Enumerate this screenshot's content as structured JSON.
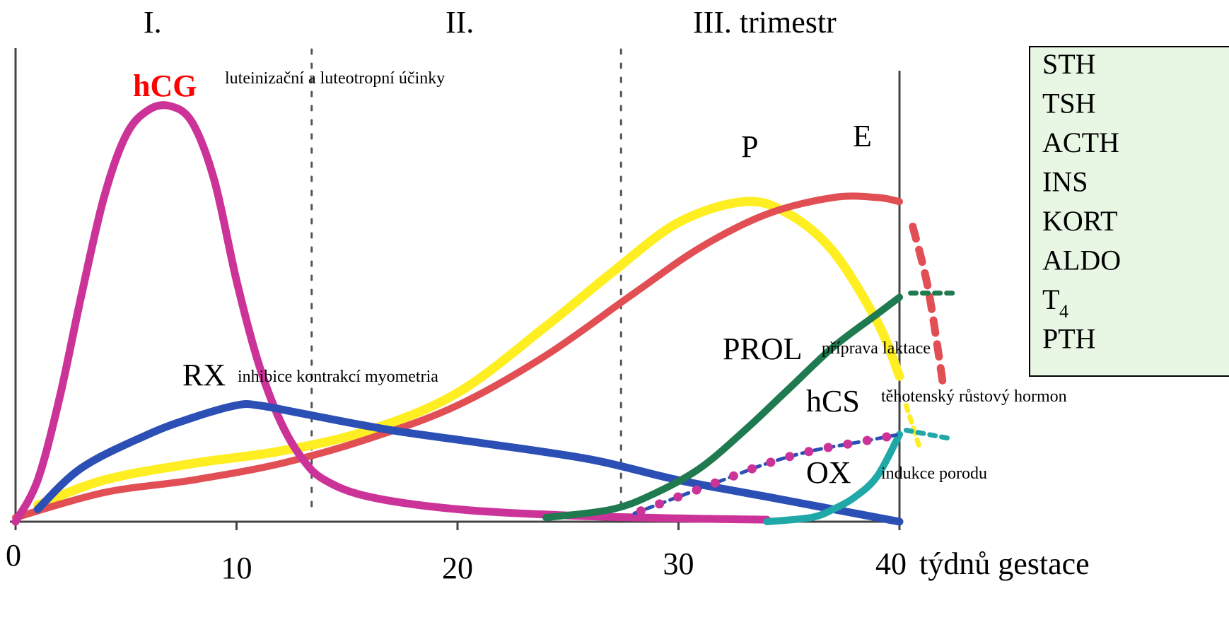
{
  "chart_data": {
    "type": "line",
    "title": "",
    "xlabel": "týdnů gestace",
    "ylabel": "",
    "xlim": [
      0,
      40
    ],
    "ylim": [
      0,
      100
    ],
    "x_ticks": [
      {
        "value": 0,
        "label": "0"
      },
      {
        "value": 10,
        "label": "10"
      },
      {
        "value": 20,
        "label": "20"
      },
      {
        "value": 30,
        "label": "30"
      },
      {
        "value": 40,
        "label": "40"
      }
    ],
    "trimesters": [
      {
        "label": "I.",
        "x": 6.2
      },
      {
        "label": "II.",
        "x": 20.1
      },
      {
        "label": "III. trimestr",
        "x": 33.9
      }
    ],
    "trimester_boundaries": [
      13.4,
      27.4
    ],
    "series": [
      {
        "name": "hCG",
        "note": "luteinizační a luteotropní účinky",
        "color": "#cc3399",
        "points": [
          [
            0,
            0
          ],
          [
            1,
            10
          ],
          [
            2,
            30
          ],
          [
            3,
            55
          ],
          [
            4,
            78
          ],
          [
            5,
            93
          ],
          [
            6,
            99
          ],
          [
            7,
            100
          ],
          [
            8,
            96
          ],
          [
            9,
            82
          ],
          [
            10,
            58
          ],
          [
            11,
            38
          ],
          [
            12,
            24
          ],
          [
            13,
            15
          ],
          [
            14,
            10
          ],
          [
            16,
            6
          ],
          [
            20,
            3
          ],
          [
            25,
            1.5
          ],
          [
            30,
            0.8
          ],
          [
            34,
            0.5
          ]
        ]
      },
      {
        "name": "RX",
        "note": "inhibice kontrakcí myometria",
        "color": "#2b4fb5",
        "points": [
          [
            1,
            3
          ],
          [
            3,
            13
          ],
          [
            6,
            21
          ],
          [
            8,
            25
          ],
          [
            10,
            28
          ],
          [
            11,
            28
          ],
          [
            13,
            26
          ],
          [
            17,
            22
          ],
          [
            21,
            19
          ],
          [
            26,
            15
          ],
          [
            30,
            10
          ],
          [
            34,
            6
          ],
          [
            37,
            3
          ],
          [
            40,
            0
          ]
        ]
      },
      {
        "name": "P",
        "note": "",
        "color": "#ffee22",
        "points": [
          [
            1,
            4
          ],
          [
            4,
            10
          ],
          [
            8,
            14
          ],
          [
            12,
            17
          ],
          [
            16,
            22
          ],
          [
            20,
            31
          ],
          [
            24,
            47
          ],
          [
            27,
            60
          ],
          [
            30,
            72
          ],
          [
            33,
            77
          ],
          [
            35,
            74
          ],
          [
            37,
            65
          ],
          [
            39,
            48
          ],
          [
            40,
            35
          ]
        ]
      },
      {
        "name": "E",
        "note": "",
        "color": "#e14f55",
        "points": [
          [
            0,
            1
          ],
          [
            4,
            7
          ],
          [
            8,
            10
          ],
          [
            12,
            14
          ],
          [
            16,
            20
          ],
          [
            20,
            28
          ],
          [
            24,
            40
          ],
          [
            28,
            55
          ],
          [
            31,
            66
          ],
          [
            34,
            74
          ],
          [
            37,
            78
          ],
          [
            39,
            78
          ],
          [
            40,
            77
          ]
        ]
      },
      {
        "name": "PROL",
        "note": "příprava laktace",
        "color": "#1f7a4f",
        "points": [
          [
            24,
            1
          ],
          [
            27,
            3
          ],
          [
            29,
            7
          ],
          [
            31,
            13
          ],
          [
            33,
            22
          ],
          [
            35,
            32
          ],
          [
            37,
            42
          ],
          [
            39,
            50
          ],
          [
            40,
            54
          ]
        ]
      },
      {
        "name": "hCS",
        "note": "těhotenský růstový hormon",
        "color": "#2b4fb5",
        "points": [
          [
            28,
            2
          ],
          [
            30,
            6
          ],
          [
            32,
            10
          ],
          [
            34,
            14
          ],
          [
            36,
            17
          ],
          [
            38,
            19
          ],
          [
            40,
            21
          ]
        ]
      },
      {
        "name": "OX",
        "note": "indukce porodu",
        "color": "#20a8a8",
        "points": [
          [
            34,
            0
          ],
          [
            36,
            1
          ],
          [
            37,
            3
          ],
          [
            38,
            6
          ],
          [
            39,
            11
          ],
          [
            40,
            21
          ]
        ]
      }
    ],
    "postpartum": [
      {
        "name": "E",
        "color": "#e14f55",
        "points": [
          [
            40.6,
            71
          ],
          [
            41.3,
            56
          ],
          [
            42,
            32
          ]
        ]
      },
      {
        "name": "P",
        "color": "#ffee22",
        "points": [
          [
            40.3,
            28
          ],
          [
            40.9,
            18
          ]
        ]
      },
      {
        "name": "PROL",
        "color": "#1f7a4f",
        "points": [
          [
            40.5,
            55
          ],
          [
            42.5,
            55
          ]
        ]
      },
      {
        "name": "OX",
        "color": "#20a8a8",
        "points": [
          [
            40.3,
            22
          ],
          [
            42.3,
            20
          ]
        ]
      }
    ],
    "legend_box": [
      "STH",
      "TSH",
      "ACTH",
      "INS",
      "KORT",
      "ALDO",
      "T",
      "PTH"
    ],
    "legend_subscripts": {
      "T": "4"
    },
    "legend_box_color": "#e8f7e4"
  }
}
